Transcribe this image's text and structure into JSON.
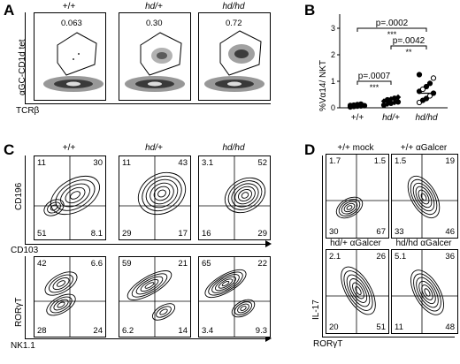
{
  "panels": {
    "A": "A",
    "B": "B",
    "C": "C",
    "D": "D"
  },
  "panelA": {
    "ylabel": "αGC-CD1d tet",
    "xlabel": "TCRβ",
    "plots": [
      {
        "title": "+/+",
        "value": "0.063"
      },
      {
        "title": "hd/+",
        "value": "0.30"
      },
      {
        "title": "hd/hd",
        "value": "0.72"
      }
    ]
  },
  "panelB": {
    "ylabel": "%Vα14/ NKT",
    "yticks": [
      "0",
      "1",
      "2",
      "3"
    ],
    "categories": [
      "+/+",
      "hd/+",
      "hd/hd"
    ],
    "pvalues": [
      "p=.0002",
      "***",
      "p=.0042",
      "**",
      "p=.0007",
      "***"
    ]
  },
  "chart_data": {
    "type": "scatter",
    "categories": [
      "+/+",
      "hd/+",
      "hd/hd"
    ],
    "ylabel": "%Vα14/ NKT",
    "ylim": [
      0,
      3
    ],
    "series": [
      {
        "values": [
          0.03,
          0.05,
          0.06,
          0.07,
          0.08,
          0.09,
          0.1,
          0.12,
          0.14
        ]
      },
      {
        "values": [
          0.1,
          0.14,
          0.17,
          0.2,
          0.22,
          0.25,
          0.3,
          0.33,
          0.36,
          0.4
        ]
      },
      {
        "values": [
          0.2,
          0.28,
          0.35,
          0.45,
          0.55,
          0.62,
          0.7,
          0.8,
          0.92,
          1.12,
          1.25
        ]
      }
    ],
    "means": [
      0.08,
      0.22,
      0.55
    ]
  },
  "panelC": {
    "headers": [
      "+/+",
      "hd/+",
      "hd/hd"
    ],
    "top_ylabel": "CD196",
    "top_xlabel": "CD103",
    "bottom_ylabel": "RORγT",
    "bottom_xlabel": "NK1.1",
    "top": [
      [
        "11",
        "30",
        "51",
        "8.1"
      ],
      [
        "11",
        "43",
        "29",
        "17"
      ],
      [
        "3.1",
        "52",
        "16",
        "29"
      ]
    ],
    "bottom": [
      [
        "42",
        "6.6",
        "28",
        "24"
      ],
      [
        "59",
        "21",
        "6.2",
        "14"
      ],
      [
        "65",
        "22",
        "3.4",
        "9.3"
      ]
    ]
  },
  "panelD": {
    "headers": [
      "+/+ mock",
      "+/+ αGalcer",
      "hd/+ αGalcer",
      "hd/hd αGalcer"
    ],
    "ylabel": "IL-17",
    "xlabel": "RORγT",
    "quads": [
      [
        "1.7",
        "1.5",
        "30",
        "67"
      ],
      [
        "1.5",
        "19",
        "33",
        "46"
      ],
      [
        "2.1",
        "26",
        "20",
        "51"
      ],
      [
        "5.1",
        "36",
        "11",
        "48"
      ]
    ]
  }
}
